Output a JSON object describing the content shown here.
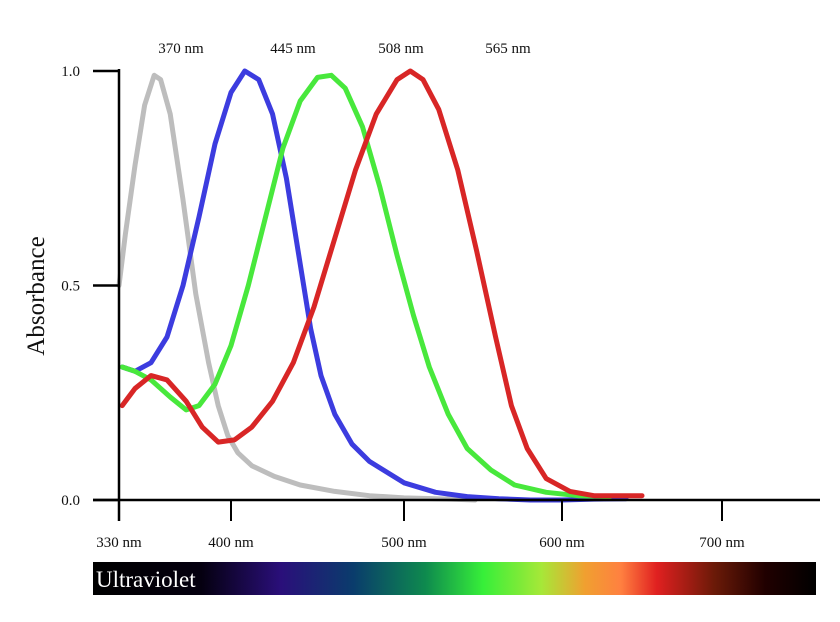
{
  "chart_data": {
    "type": "line",
    "ylabel": "Absorbance",
    "xlabel": "",
    "xlim": [
      330,
      750
    ],
    "ylim": [
      0,
      1.0
    ],
    "x_ticks": [
      {
        "value": 330,
        "label": "330 nm"
      },
      {
        "value": 400,
        "label": "400 nm"
      },
      {
        "value": 500,
        "label": "500 nm"
      },
      {
        "value": 600,
        "label": "600 nm"
      },
      {
        "value": 700,
        "label": "700 nm"
      }
    ],
    "y_ticks": [
      {
        "value": 0.0,
        "label": "0.0"
      },
      {
        "value": 0.5,
        "label": "0.5"
      },
      {
        "value": 1.0,
        "label": "1.0"
      }
    ],
    "peak_labels": [
      "370 nm",
      "445 nm",
      "508 nm",
      "565 nm"
    ],
    "series": [
      {
        "color": "#bdbdbd",
        "points": [
          [
            330,
            0.5
          ],
          [
            334,
            0.62
          ],
          [
            340,
            0.78
          ],
          [
            346,
            0.92
          ],
          [
            352,
            0.99
          ],
          [
            356,
            0.98
          ],
          [
            362,
            0.9
          ],
          [
            370,
            0.7
          ],
          [
            378,
            0.48
          ],
          [
            386,
            0.32
          ],
          [
            392,
            0.22
          ],
          [
            398,
            0.15
          ],
          [
            404,
            0.11
          ],
          [
            412,
            0.08
          ],
          [
            425,
            0.055
          ],
          [
            440,
            0.035
          ],
          [
            460,
            0.02
          ],
          [
            480,
            0.01
          ],
          [
            500,
            0.005
          ],
          [
            530,
            0.002
          ],
          [
            545,
            0.0
          ]
        ]
      },
      {
        "color": "#3c3cdf",
        "points": [
          [
            332,
            0.31
          ],
          [
            340,
            0.3
          ],
          [
            350,
            0.32
          ],
          [
            360,
            0.38
          ],
          [
            370,
            0.5
          ],
          [
            380,
            0.66
          ],
          [
            390,
            0.83
          ],
          [
            400,
            0.95
          ],
          [
            408,
            1.0
          ],
          [
            416,
            0.98
          ],
          [
            424,
            0.9
          ],
          [
            432,
            0.75
          ],
          [
            440,
            0.55
          ],
          [
            446,
            0.4
          ],
          [
            452,
            0.29
          ],
          [
            460,
            0.2
          ],
          [
            470,
            0.13
          ],
          [
            480,
            0.09
          ],
          [
            500,
            0.04
          ],
          [
            520,
            0.018
          ],
          [
            540,
            0.008
          ],
          [
            560,
            0.003
          ],
          [
            580,
            0.0
          ],
          [
            600,
            0.0
          ],
          [
            620,
            0.002
          ],
          [
            640,
            0.003
          ]
        ]
      },
      {
        "color": "#48e83c",
        "points": [
          [
            332,
            0.31
          ],
          [
            340,
            0.3
          ],
          [
            350,
            0.28
          ],
          [
            362,
            0.24
          ],
          [
            372,
            0.21
          ],
          [
            380,
            0.22
          ],
          [
            390,
            0.27
          ],
          [
            400,
            0.36
          ],
          [
            410,
            0.5
          ],
          [
            420,
            0.66
          ],
          [
            430,
            0.82
          ],
          [
            440,
            0.93
          ],
          [
            450,
            0.985
          ],
          [
            458,
            0.99
          ],
          [
            466,
            0.96
          ],
          [
            476,
            0.87
          ],
          [
            486,
            0.73
          ],
          [
            496,
            0.57
          ],
          [
            506,
            0.43
          ],
          [
            516,
            0.31
          ],
          [
            528,
            0.2
          ],
          [
            540,
            0.12
          ],
          [
            555,
            0.07
          ],
          [
            570,
            0.035
          ],
          [
            590,
            0.018
          ],
          [
            610,
            0.01
          ],
          [
            630,
            0.008
          ]
        ]
      },
      {
        "color": "#d82626",
        "points": [
          [
            332,
            0.22
          ],
          [
            340,
            0.26
          ],
          [
            350,
            0.29
          ],
          [
            360,
            0.28
          ],
          [
            372,
            0.23
          ],
          [
            382,
            0.17
          ],
          [
            392,
            0.135
          ],
          [
            402,
            0.14
          ],
          [
            412,
            0.17
          ],
          [
            424,
            0.23
          ],
          [
            436,
            0.32
          ],
          [
            448,
            0.45
          ],
          [
            460,
            0.61
          ],
          [
            472,
            0.77
          ],
          [
            484,
            0.9
          ],
          [
            496,
            0.98
          ],
          [
            504,
            1.0
          ],
          [
            512,
            0.98
          ],
          [
            522,
            0.91
          ],
          [
            534,
            0.77
          ],
          [
            546,
            0.58
          ],
          [
            558,
            0.38
          ],
          [
            568,
            0.22
          ],
          [
            578,
            0.12
          ],
          [
            590,
            0.05
          ],
          [
            605,
            0.02
          ],
          [
            620,
            0.01
          ],
          [
            650,
            0.01
          ]
        ]
      }
    ]
  },
  "spectrum_bar": {
    "label": "Ultraviolet",
    "stops": [
      {
        "offset": 0.0,
        "color": "#000000"
      },
      {
        "offset": 0.15,
        "color": "#050010"
      },
      {
        "offset": 0.26,
        "color": "#2a0f7a"
      },
      {
        "offset": 0.36,
        "color": "#0a3c6c"
      },
      {
        "offset": 0.46,
        "color": "#0e8a4e"
      },
      {
        "offset": 0.54,
        "color": "#37ef39"
      },
      {
        "offset": 0.62,
        "color": "#a6e838"
      },
      {
        "offset": 0.68,
        "color": "#f0a030"
      },
      {
        "offset": 0.73,
        "color": "#ff8040"
      },
      {
        "offset": 0.78,
        "color": "#e02020"
      },
      {
        "offset": 0.86,
        "color": "#6a1a08"
      },
      {
        "offset": 0.93,
        "color": "#200000"
      },
      {
        "offset": 1.0,
        "color": "#000000"
      }
    ]
  }
}
